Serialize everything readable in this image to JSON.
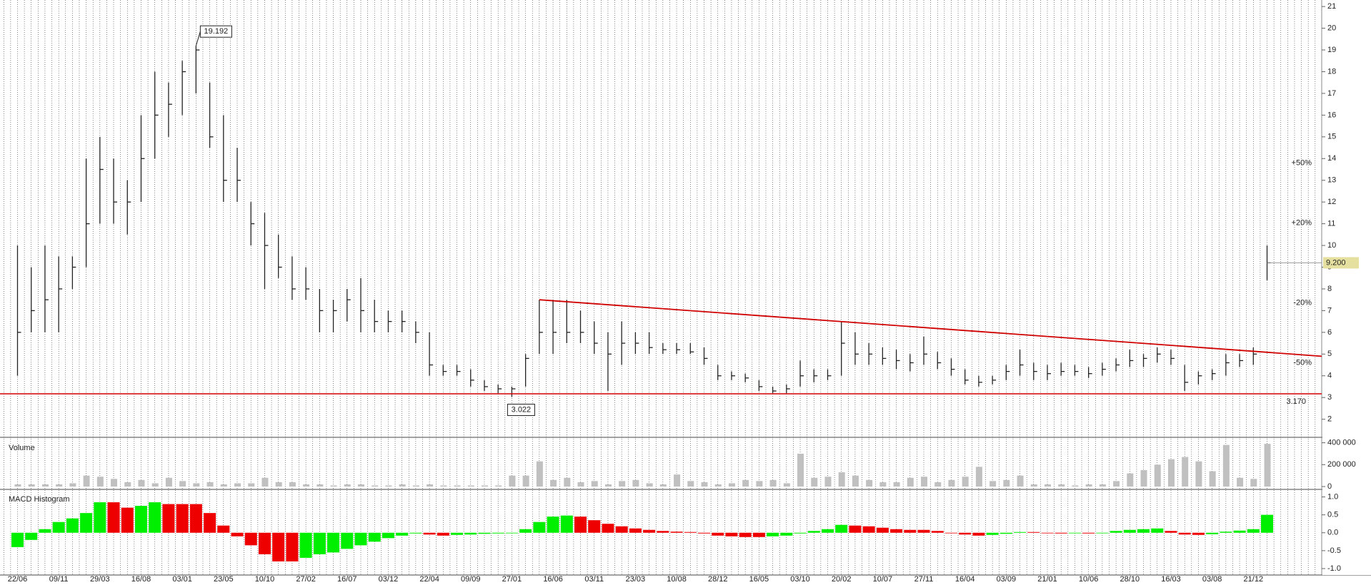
{
  "chart_data": [
    {
      "type": "hlc",
      "color": "#222222",
      "high": [
        10,
        9,
        10,
        9.5,
        9.5,
        14,
        15,
        14,
        13,
        16,
        18,
        17.5,
        18.5,
        19.192,
        17.5,
        16,
        14.5,
        12,
        11.5,
        10.5,
        9.5,
        9,
        8,
        7.5,
        8,
        8.5,
        7.5,
        7,
        7,
        6.5,
        6,
        4.5,
        4.5,
        4.3,
        3.8,
        3.6,
        3.5,
        5,
        7.5,
        7.5,
        7.5,
        7,
        6.5,
        6,
        6.5,
        6,
        6,
        5.5,
        5.5,
        5.5,
        5.3,
        4.5,
        4.2,
        4.1,
        3.8,
        3.5,
        3.6,
        4.7,
        4.3,
        4.3,
        6.5,
        6,
        5.5,
        5.3,
        5.2,
        5,
        5.8,
        5.1,
        4.8,
        4.3,
        4,
        4,
        4.5,
        5.2,
        4.6,
        4.5,
        4.6,
        4.5,
        4.4,
        4.6,
        4.8,
        5.2,
        5,
        5.3,
        5.2,
        4.5,
        4.2,
        4.3,
        5,
        5,
        5.3,
        10
      ],
      "low": [
        4,
        6,
        6,
        6,
        8,
        9,
        11,
        11,
        10.5,
        12,
        14,
        15,
        16,
        17,
        14.5,
        12,
        12,
        10,
        8,
        8.5,
        7.5,
        7.5,
        6,
        6,
        6.5,
        6,
        6,
        6,
        6,
        5.5,
        4,
        4,
        4,
        3.5,
        3.3,
        3.2,
        3.022,
        3.5,
        5,
        5,
        5.5,
        5.5,
        5,
        3.3,
        4.5,
        5,
        5,
        5,
        5,
        5,
        4.5,
        3.8,
        3.8,
        3.7,
        3.3,
        3.2,
        3.2,
        3.5,
        3.7,
        3.8,
        4,
        4.5,
        4.5,
        4.5,
        4.3,
        4.2,
        4.5,
        4.3,
        4,
        3.6,
        3.5,
        3.6,
        3.8,
        4,
        3.8,
        3.8,
        4,
        4,
        3.9,
        4,
        4.2,
        4.4,
        4.4,
        4.6,
        4.5,
        3.3,
        3.6,
        3.8,
        4,
        4.4,
        4.5,
        8.4
      ],
      "close": [
        6,
        7,
        7.5,
        8,
        9,
        11,
        13.5,
        12,
        12,
        14,
        16,
        16.5,
        18,
        19,
        15,
        13,
        13,
        11,
        10,
        9,
        8,
        8,
        7,
        7,
        7.5,
        7,
        6.5,
        6.5,
        6.5,
        6,
        4.5,
        4.2,
        4.2,
        3.8,
        3.5,
        3.4,
        3.4,
        4.8,
        6,
        6,
        6,
        6,
        5.5,
        5,
        5.5,
        5.5,
        5.3,
        5.2,
        5.2,
        5.1,
        4.8,
        4,
        4,
        3.9,
        3.5,
        3.3,
        3.4,
        4,
        4,
        4,
        5.5,
        5,
        5,
        4.8,
        4.7,
        4.6,
        5,
        4.6,
        4.3,
        3.8,
        3.7,
        3.8,
        4.2,
        4.5,
        4.2,
        4.1,
        4.2,
        4.2,
        4.1,
        4.3,
        4.5,
        4.7,
        4.8,
        5,
        4.8,
        3.7,
        4,
        4.1,
        4.6,
        4.7,
        5,
        9.2
      ],
      "ylim": [
        1.2,
        21.3
      ],
      "yticks": [
        2,
        3,
        4,
        5,
        6,
        7,
        8,
        9,
        10,
        11,
        12,
        13,
        14,
        15,
        16,
        17,
        18,
        19,
        20,
        21
      ],
      "last_price": {
        "value": 9.2,
        "label": "9.200"
      },
      "support": {
        "value": 3.17,
        "label": "3.170",
        "color": "#d00000"
      },
      "trendline": {
        "points": [
          [
            38,
            7.5
          ],
          [
            95,
            4.9
          ]
        ],
        "color": "#d00000"
      },
      "levels": [
        {
          "value": 13.8,
          "label": "+50%",
          "color": "#2a9a2a"
        },
        {
          "value": 11.04,
          "label": "+20%",
          "color": "#2a9a2a"
        },
        {
          "value": 7.36,
          "label": "-20%",
          "color": "#c00000"
        },
        {
          "value": 4.6,
          "label": "-50%",
          "color": "#c00000"
        }
      ]
    },
    {
      "type": "bar",
      "title": "Volume",
      "color": "#c0c0c0",
      "values": [
        20000,
        20000,
        20000,
        20000,
        30000,
        100000,
        90000,
        70000,
        40000,
        60000,
        30000,
        80000,
        50000,
        30000,
        40000,
        20000,
        30000,
        30000,
        80000,
        40000,
        40000,
        20000,
        20000,
        10000,
        20000,
        20000,
        10000,
        10000,
        20000,
        10000,
        20000,
        10000,
        10000,
        10000,
        10000,
        10000,
        100000,
        100000,
        230000,
        60000,
        80000,
        40000,
        50000,
        20000,
        50000,
        60000,
        30000,
        20000,
        110000,
        50000,
        40000,
        20000,
        30000,
        60000,
        50000,
        60000,
        30000,
        300000,
        80000,
        90000,
        130000,
        100000,
        60000,
        40000,
        40000,
        80000,
        90000,
        40000,
        60000,
        90000,
        180000,
        50000,
        60000,
        100000,
        20000,
        20000,
        20000,
        10000,
        20000,
        20000,
        50000,
        120000,
        150000,
        200000,
        250000,
        270000,
        230000,
        140000,
        380000,
        80000,
        70000,
        390000
      ],
      "ylim": [
        0,
        430000
      ],
      "yticks": [
        0,
        {
          "value": 200000,
          "label": "200 000"
        },
        {
          "value": 400000,
          "label": "400 000"
        }
      ]
    },
    {
      "type": "histogram",
      "title": "MACD Histogram",
      "up_color": "#00ee00",
      "down_color": "#ee0000",
      "categories": [
        "22/06",
        null,
        null,
        "09/11",
        null,
        null,
        "29/03",
        null,
        null,
        "16/08",
        null,
        null,
        "03/01",
        null,
        null,
        "23/05",
        null,
        null,
        "10/10",
        null,
        null,
        "27/02",
        null,
        null,
        "16/07",
        null,
        null,
        "03/12",
        null,
        null,
        "22/04",
        null,
        null,
        "09/09",
        null,
        null,
        "27/01",
        null,
        null,
        "16/06",
        null,
        null,
        "03/11",
        null,
        null,
        "23/03",
        null,
        null,
        "10/08",
        null,
        null,
        "28/12",
        null,
        null,
        "16/05",
        null,
        null,
        "03/10",
        null,
        null,
        "20/02",
        null,
        null,
        "10/07",
        null,
        null,
        "27/11",
        null,
        null,
        "16/04",
        null,
        null,
        "03/09",
        null,
        null,
        "21/01",
        null,
        null,
        "10/06",
        null,
        null,
        "28/10",
        null,
        null,
        "16/03",
        null,
        null,
        "03/08",
        null,
        null,
        "21/12",
        null
      ],
      "values": [
        -0.4,
        -0.2,
        0.1,
        0.3,
        0.4,
        0.55,
        0.85,
        0.85,
        0.7,
        0.75,
        0.85,
        0.8,
        0.8,
        0.8,
        0.55,
        0.2,
        -0.1,
        -0.35,
        -0.6,
        -0.8,
        -0.8,
        -0.7,
        -0.6,
        -0.55,
        -0.45,
        -0.35,
        -0.25,
        -0.15,
        -0.08,
        -0.02,
        -0.05,
        -0.08,
        -0.06,
        -0.05,
        -0.03,
        -0.02,
        0,
        0.1,
        0.3,
        0.45,
        0.48,
        0.45,
        0.35,
        0.25,
        0.18,
        0.12,
        0.08,
        0.05,
        0.03,
        0.02,
        -0.02,
        -0.08,
        -0.1,
        -0.12,
        -0.12,
        -0.1,
        -0.08,
        -0.02,
        0.05,
        0.1,
        0.22,
        0.2,
        0.18,
        0.14,
        0.1,
        0.08,
        0.08,
        0.05,
        0,
        -0.05,
        -0.08,
        -0.06,
        -0.03,
        0.02,
        0.02,
        -0.01,
        -0.02,
        0,
        -0.02,
        0,
        0.05,
        0.08,
        0.1,
        0.12,
        0.05,
        -0.05,
        -0.06,
        -0.04,
        0.03,
        0.06,
        0.1,
        0.5
      ],
      "ylim": [
        -1.14,
        1.17
      ],
      "yticks": [
        {
          "value": 1,
          "label": "1.0"
        },
        0.5,
        {
          "value": 0,
          "label": "0.0"
        },
        -0.5,
        {
          "value": -1,
          "label": "-1.0"
        }
      ]
    }
  ]
}
